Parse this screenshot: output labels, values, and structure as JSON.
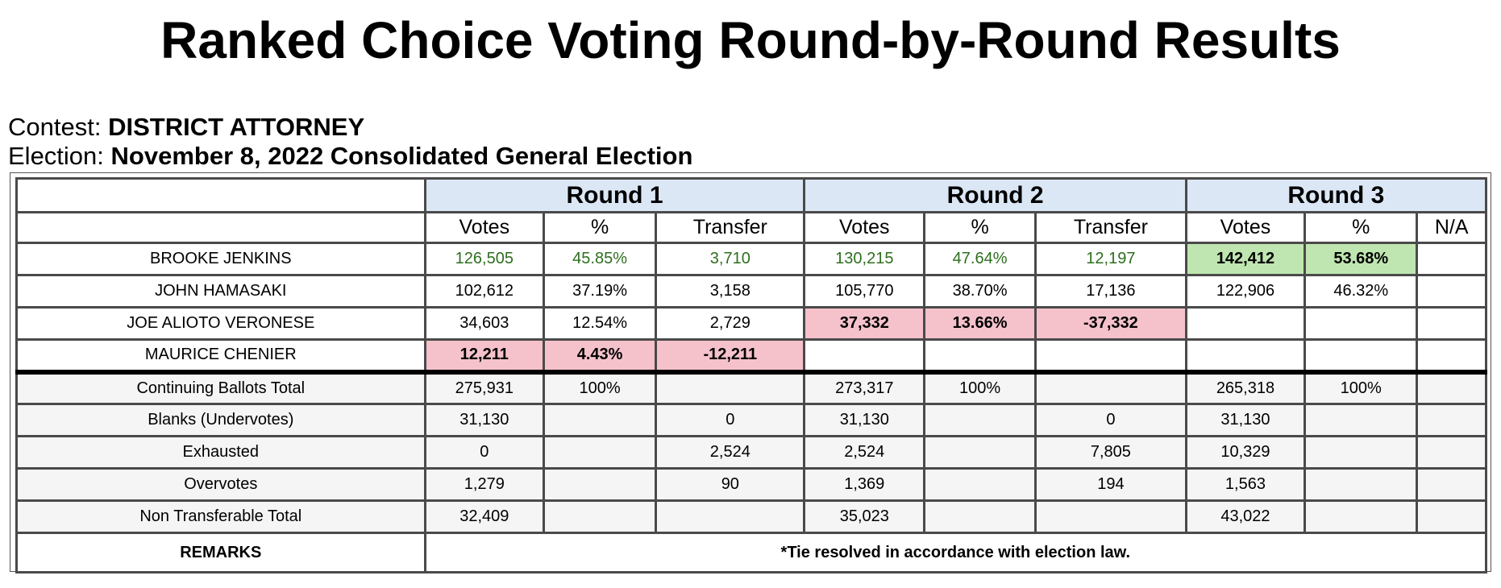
{
  "title": "Ranked Choice Voting Round-by-Round Results",
  "contest": {
    "label": "Contest:",
    "value": "DISTRICT ATTORNEY"
  },
  "election": {
    "label": "Election:",
    "value": "November 8, 2022 Consolidated General Election"
  },
  "rounds": [
    "Round 1",
    "Round 2",
    "Round 3"
  ],
  "subheaders": {
    "votes": "Votes",
    "pct": "%",
    "transfer": "Transfer",
    "na": "N/A"
  },
  "candidates": [
    {
      "name": "BROOKE JENKINS",
      "r1_votes": "126,505",
      "r1_pct": "45.85%",
      "r1_transfer": "3,710",
      "r2_votes": "130,215",
      "r2_pct": "47.64%",
      "r2_transfer": "12,197",
      "r3_votes": "142,412",
      "r3_pct": "53.68%",
      "r3_na": ""
    },
    {
      "name": "JOHN HAMASAKI",
      "r1_votes": "102,612",
      "r1_pct": "37.19%",
      "r1_transfer": "3,158",
      "r2_votes": "105,770",
      "r2_pct": "38.70%",
      "r2_transfer": "17,136",
      "r3_votes": "122,906",
      "r3_pct": "46.32%",
      "r3_na": ""
    },
    {
      "name": "JOE ALIOTO VERONESE",
      "r1_votes": "34,603",
      "r1_pct": "12.54%",
      "r1_transfer": "2,729",
      "r2_votes": "37,332",
      "r2_pct": "13.66%",
      "r2_transfer": "-37,332",
      "r3_votes": "",
      "r3_pct": "",
      "r3_na": ""
    },
    {
      "name": "MAURICE CHENIER",
      "r1_votes": "12,211",
      "r1_pct": "4.43%",
      "r1_transfer": "-12,211",
      "r2_votes": "",
      "r2_pct": "",
      "r2_transfer": "",
      "r3_votes": "",
      "r3_pct": "",
      "r3_na": ""
    }
  ],
  "stats": [
    {
      "name": "Continuing Ballots Total",
      "r1_votes": "275,931",
      "r1_pct": "100%",
      "r1_transfer": "",
      "r2_votes": "273,317",
      "r2_pct": "100%",
      "r2_transfer": "",
      "r3_votes": "265,318",
      "r3_pct": "100%",
      "r3_na": ""
    },
    {
      "name": "Blanks (Undervotes)",
      "r1_votes": "31,130",
      "r1_pct": "",
      "r1_transfer": "0",
      "r2_votes": "31,130",
      "r2_pct": "",
      "r2_transfer": "0",
      "r3_votes": "31,130",
      "r3_pct": "",
      "r3_na": ""
    },
    {
      "name": "Exhausted",
      "r1_votes": "0",
      "r1_pct": "",
      "r1_transfer": "2,524",
      "r2_votes": "2,524",
      "r2_pct": "",
      "r2_transfer": "7,805",
      "r3_votes": "10,329",
      "r3_pct": "",
      "r3_na": ""
    },
    {
      "name": "Overvotes",
      "r1_votes": "1,279",
      "r1_pct": "",
      "r1_transfer": "90",
      "r2_votes": "1,369",
      "r2_pct": "",
      "r2_transfer": "194",
      "r3_votes": "1,563",
      "r3_pct": "",
      "r3_na": ""
    },
    {
      "name": "Non Transferable Total",
      "r1_votes": "32,409",
      "r1_pct": "",
      "r1_transfer": "",
      "r2_votes": "35,023",
      "r2_pct": "",
      "r2_transfer": "",
      "r3_votes": "43,022",
      "r3_pct": "",
      "r3_na": ""
    }
  ],
  "remarks": {
    "label": "REMARKS",
    "text": "*Tie resolved in accordance with election law."
  },
  "colors": {
    "round_header_bg": "#dbe7f5",
    "eliminated_bg": "#f5c2cc",
    "winner_bg": "#bfe6b0",
    "leader_text": "#2e6e1e"
  }
}
